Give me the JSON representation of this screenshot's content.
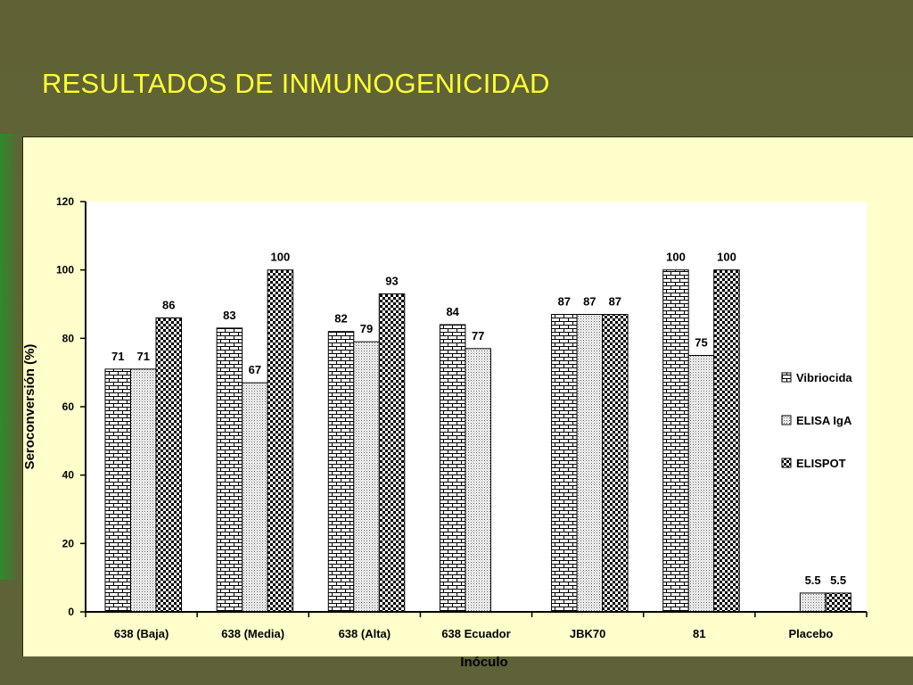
{
  "title": "RESULTADOS DE INMUNOGENICIDAD",
  "chart_data": {
    "type": "bar",
    "title": "",
    "xlabel": "Inóculo",
    "ylabel": "Seroconversión (%)",
    "ylim": [
      0,
      120
    ],
    "yticks": [
      0,
      20,
      40,
      60,
      80,
      100,
      120
    ],
    "grid": false,
    "legend_position": "right",
    "categories": [
      "638 (Baja)",
      "638 (Media)",
      "638 (Alta)",
      "638 Ecuador",
      "JBK70",
      "81",
      "Placebo"
    ],
    "series": [
      {
        "name": "Vibriocida",
        "pattern": "brick",
        "values": [
          71,
          83,
          82,
          84,
          87,
          100,
          null
        ],
        "labels": [
          "71",
          "83",
          "82",
          "84",
          "87",
          "100",
          ""
        ]
      },
      {
        "name": "ELISA IgA",
        "pattern": "dots",
        "values": [
          71,
          67,
          79,
          77,
          87,
          75,
          5.5
        ],
        "labels": [
          "71",
          "67",
          "79",
          "77",
          "87",
          "75",
          "5.5"
        ]
      },
      {
        "name": "ELISPOT",
        "pattern": "checker",
        "values": [
          86,
          100,
          93,
          null,
          87,
          100,
          5.5
        ],
        "labels": [
          "86",
          "100",
          "93",
          "",
          "87",
          "100",
          "5.5"
        ]
      }
    ]
  }
}
